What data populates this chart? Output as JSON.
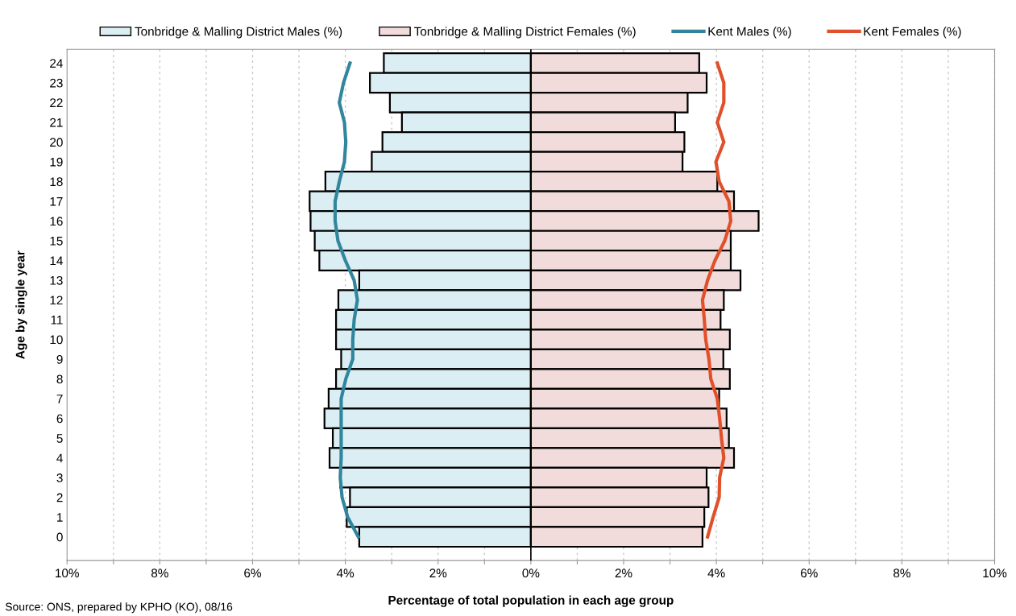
{
  "chart_data": {
    "type": "bar",
    "orientation": "horizontal",
    "stacked": true,
    "xlabel": "Percentage of total population in each age group",
    "ylabel": "Age by single year",
    "categories": [
      "24",
      "23",
      "22",
      "21",
      "20",
      "19",
      "18",
      "17",
      "16",
      "15",
      "14",
      "13",
      "12",
      "11",
      "10",
      "9",
      "8",
      "7",
      "6",
      "5",
      "4",
      "3",
      "2",
      "1",
      "0"
    ],
    "series": [
      {
        "name": "Tonbridge & Malling District Males (%)",
        "color": "#daeef3",
        "values": [
          -3.17,
          -3.47,
          -3.04,
          -2.78,
          -3.2,
          -3.43,
          -4.43,
          -4.77,
          -4.75,
          -4.66,
          -4.56,
          -3.7,
          -4.15,
          -4.2,
          -4.2,
          -4.09,
          -4.2,
          -4.36,
          -4.45,
          -4.27,
          -4.34,
          -4.11,
          -3.9,
          -3.97,
          -3.7
        ]
      },
      {
        "name": "Tonbridge & Malling District Females (%)",
        "color": "#f2dcdb",
        "values": [
          3.63,
          3.79,
          3.38,
          3.11,
          3.31,
          3.27,
          4.02,
          4.38,
          4.91,
          4.31,
          4.31,
          4.52,
          4.16,
          4.09,
          4.29,
          4.15,
          4.29,
          4.06,
          4.22,
          4.27,
          4.38,
          3.79,
          3.83,
          3.74,
          3.7
        ]
      },
      {
        "name": "Kent Males (%)",
        "type": "line",
        "color": "#31859c",
        "values": [
          -3.9,
          -4.04,
          -4.13,
          -4.02,
          -3.99,
          -4.02,
          -4.13,
          -4.22,
          -4.22,
          -4.16,
          -4.0,
          -3.81,
          -3.74,
          -3.81,
          -3.84,
          -3.84,
          -3.99,
          -4.09,
          -4.09,
          -4.09,
          -4.09,
          -4.11,
          -4.07,
          -3.95,
          -3.72
        ]
      },
      {
        "name": "Kent Females (%)",
        "type": "line",
        "color": "#e0502a",
        "values": [
          4.02,
          4.16,
          4.16,
          4.02,
          4.16,
          3.99,
          4.06,
          4.27,
          4.31,
          4.18,
          3.97,
          3.81,
          3.7,
          3.74,
          3.77,
          3.84,
          3.88,
          4.02,
          4.07,
          4.11,
          4.16,
          4.07,
          4.06,
          3.93,
          3.81
        ]
      }
    ],
    "xlim": [
      -10,
      10
    ],
    "xticks": [
      {
        "value": -10,
        "label": "10%"
      },
      {
        "value": -9,
        "label": null
      },
      {
        "value": -8,
        "label": "8%"
      },
      {
        "value": -7,
        "label": null
      },
      {
        "value": -6,
        "label": "6%"
      },
      {
        "value": -5,
        "label": null
      },
      {
        "value": -4,
        "label": "4%"
      },
      {
        "value": -3,
        "label": null
      },
      {
        "value": -2,
        "label": "2%"
      },
      {
        "value": -1,
        "label": null
      },
      {
        "value": 0,
        "label": "0%"
      },
      {
        "value": 1,
        "label": null
      },
      {
        "value": 2,
        "label": "2%"
      },
      {
        "value": 3,
        "label": null
      },
      {
        "value": 4,
        "label": "4%"
      },
      {
        "value": 5,
        "label": null
      },
      {
        "value": 6,
        "label": "6%"
      },
      {
        "value": 7,
        "label": null
      },
      {
        "value": 8,
        "label": "8%"
      },
      {
        "value": 9,
        "label": null
      },
      {
        "value": 10,
        "label": "10%"
      }
    ],
    "grid": "x",
    "legend": "top",
    "line_style": "solid",
    "marker": "none",
    "annotations": [
      "Source: ONS, prepared by KPHO (KO), 08/16"
    ]
  }
}
